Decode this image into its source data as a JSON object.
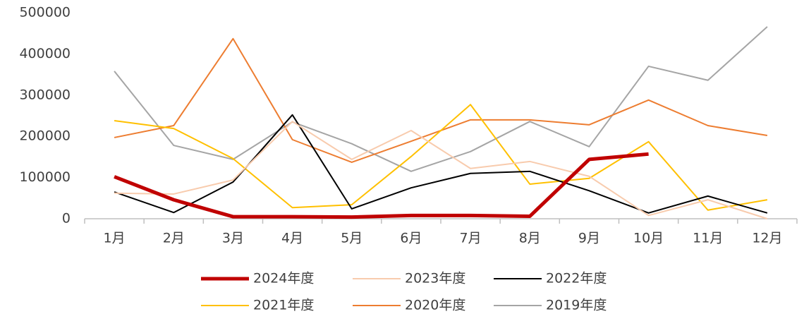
{
  "chart_data": {
    "type": "line",
    "categories": [
      "1月",
      "2月",
      "3月",
      "4月",
      "5月",
      "6月",
      "7月",
      "8月",
      "9月",
      "10月",
      "11月",
      "12月"
    ],
    "series": [
      {
        "name": "2024年度",
        "color": "#c00000",
        "values": [
          102000,
          46000,
          5000,
          5000,
          4000,
          8000,
          8000,
          6000,
          144000,
          157000,
          null,
          null
        ]
      },
      {
        "name": "2023年度",
        "color": "#f8cbad",
        "values": [
          62000,
          60000,
          94000,
          236000,
          144000,
          214000,
          122000,
          139000,
          103000,
          8000,
          46000,
          0
        ]
      },
      {
        "name": "2022年度",
        "color": "#000000",
        "values": [
          65000,
          15000,
          89000,
          252000,
          24000,
          75000,
          110000,
          115000,
          68000,
          14000,
          55000,
          14000
        ]
      },
      {
        "name": "2021年度",
        "color": "#ffc000",
        "values": [
          238000,
          219000,
          146000,
          27000,
          34000,
          151000,
          277000,
          84000,
          98000,
          187000,
          21000,
          46000
        ]
      },
      {
        "name": "2020年度",
        "color": "#ed7d31",
        "values": [
          197000,
          226000,
          437000,
          192000,
          137000,
          188000,
          240000,
          240000,
          228000,
          288000,
          226000,
          202000
        ]
      },
      {
        "name": "2019年度",
        "color": "#a5a5a5",
        "values": [
          358000,
          178000,
          144000,
          235000,
          182000,
          115000,
          163000,
          236000,
          175000,
          370000,
          336000,
          466000
        ]
      }
    ],
    "ylim": [
      0,
      500000
    ],
    "yticks": [
      0,
      100000,
      200000,
      300000,
      400000,
      500000
    ],
    "grid": false
  }
}
